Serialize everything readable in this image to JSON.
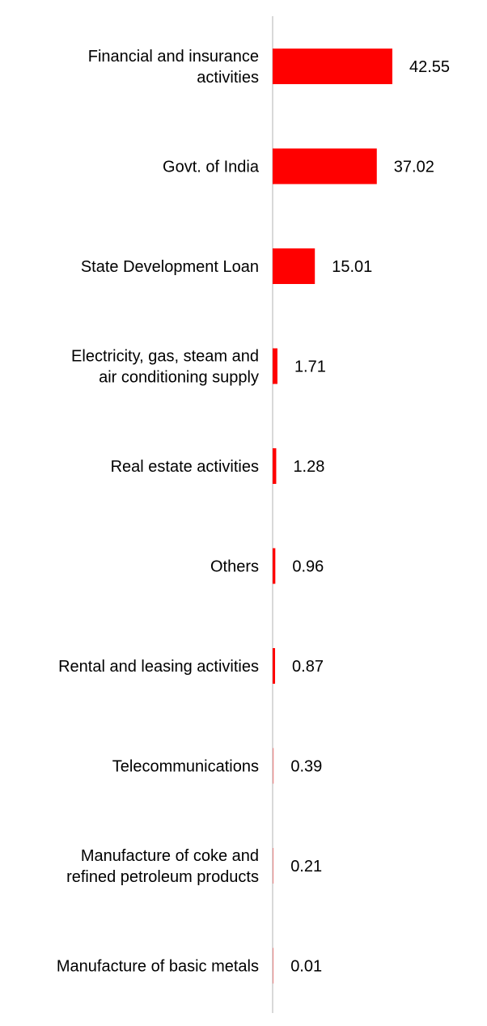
{
  "chart_data": {
    "type": "bar",
    "orientation": "horizontal",
    "categories": [
      [
        "Financial and insurance",
        "activities"
      ],
      [
        "Govt. of India"
      ],
      [
        "State Development Loan"
      ],
      [
        "Electricity, gas, steam and",
        "air conditioning supply"
      ],
      [
        "Real estate activities"
      ],
      [
        "Others"
      ],
      [
        "Rental and leasing activities"
      ],
      [
        "Telecommunications"
      ],
      [
        "Manufacture of coke and",
        "refined petroleum products"
      ],
      [
        "Manufacture of basic metals"
      ]
    ],
    "values": [
      42.55,
      37.02,
      15.01,
      1.71,
      1.28,
      0.96,
      0.87,
      0.39,
      0.21,
      0.01
    ],
    "value_labels": [
      "42.55",
      "37.02",
      "15.01",
      "1.71",
      "1.28",
      "0.96",
      "0.87",
      "0.39",
      "0.21",
      "0.01"
    ],
    "title": "",
    "xlabel": "",
    "ylabel": "",
    "xlim": [
      0,
      45
    ],
    "grid": false,
    "legend": "none",
    "bar_color": "#ff0000",
    "axis_color": "#d9d9d9"
  }
}
